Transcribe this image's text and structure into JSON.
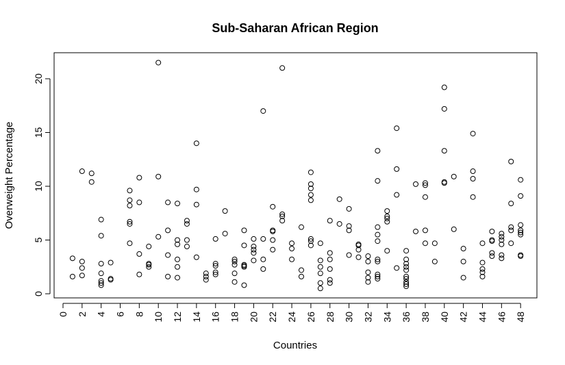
{
  "chart_data": {
    "type": "scatter",
    "title": "Sub-Saharan African Region",
    "xlabel": "Countries",
    "ylabel": "Overweight Percentage",
    "xlim": [
      0,
      48
    ],
    "ylim": [
      0,
      22
    ],
    "x_ticks": [
      0,
      2,
      4,
      6,
      8,
      10,
      12,
      14,
      16,
      18,
      20,
      22,
      24,
      26,
      28,
      30,
      32,
      34,
      36,
      38,
      40,
      42,
      44,
      46,
      48
    ],
    "y_ticks": [
      0,
      5,
      10,
      15,
      20
    ],
    "grid": false,
    "legend": "none",
    "marker": "open-circle",
    "points": [
      [
        1,
        1.6
      ],
      [
        1,
        3.3
      ],
      [
        2,
        1.7
      ],
      [
        2,
        2.4
      ],
      [
        2,
        3.0
      ],
      [
        2,
        11.4
      ],
      [
        3,
        10.4
      ],
      [
        3,
        11.2
      ],
      [
        4,
        0.8
      ],
      [
        4,
        1.0
      ],
      [
        4,
        1.2
      ],
      [
        4,
        1.9
      ],
      [
        4,
        2.8
      ],
      [
        4,
        5.4
      ],
      [
        4,
        6.9
      ],
      [
        5,
        1.3
      ],
      [
        5,
        1.4
      ],
      [
        5,
        2.9
      ],
      [
        7,
        4.7
      ],
      [
        7,
        6.5
      ],
      [
        7,
        6.7
      ],
      [
        7,
        8.2
      ],
      [
        7,
        8.7
      ],
      [
        7,
        9.6
      ],
      [
        8,
        1.8
      ],
      [
        8,
        3.7
      ],
      [
        8,
        8.5
      ],
      [
        8,
        10.8
      ],
      [
        9,
        2.5
      ],
      [
        9,
        2.7
      ],
      [
        9,
        2.8
      ],
      [
        9,
        4.4
      ],
      [
        10,
        5.3
      ],
      [
        10,
        10.9
      ],
      [
        10,
        21.5
      ],
      [
        11,
        1.6
      ],
      [
        11,
        3.6
      ],
      [
        11,
        5.9
      ],
      [
        11,
        8.5
      ],
      [
        12,
        1.5
      ],
      [
        12,
        2.5
      ],
      [
        12,
        3.2
      ],
      [
        12,
        4.6
      ],
      [
        12,
        5.0
      ],
      [
        12,
        8.4
      ],
      [
        13,
        4.4
      ],
      [
        13,
        5.0
      ],
      [
        13,
        6.5
      ],
      [
        13,
        6.8
      ],
      [
        14,
        3.4
      ],
      [
        14,
        8.3
      ],
      [
        14,
        9.7
      ],
      [
        14,
        14.0
      ],
      [
        15,
        1.3
      ],
      [
        15,
        1.6
      ],
      [
        15,
        1.9
      ],
      [
        16,
        1.8
      ],
      [
        16,
        2.0
      ],
      [
        16,
        2.6
      ],
      [
        16,
        2.8
      ],
      [
        16,
        5.1
      ],
      [
        17,
        5.6
      ],
      [
        17,
        7.7
      ],
      [
        18,
        1.1
      ],
      [
        18,
        1.9
      ],
      [
        18,
        2.7
      ],
      [
        18,
        3.0
      ],
      [
        18,
        3.2
      ],
      [
        19,
        0.8
      ],
      [
        19,
        2.5
      ],
      [
        19,
        2.6
      ],
      [
        19,
        2.7
      ],
      [
        19,
        4.5
      ],
      [
        19,
        5.9
      ],
      [
        20,
        3.1
      ],
      [
        20,
        3.8
      ],
      [
        20,
        4.1
      ],
      [
        20,
        4.4
      ],
      [
        20,
        5.1
      ],
      [
        21,
        2.3
      ],
      [
        21,
        3.2
      ],
      [
        21,
        5.1
      ],
      [
        21,
        17.0
      ],
      [
        22,
        4.1
      ],
      [
        22,
        5.0
      ],
      [
        22,
        5.8
      ],
      [
        22,
        5.9
      ],
      [
        22,
        8.1
      ],
      [
        23,
        6.8
      ],
      [
        23,
        7.2
      ],
      [
        23,
        7.4
      ],
      [
        23,
        21.0
      ],
      [
        24,
        3.2
      ],
      [
        24,
        4.2
      ],
      [
        24,
        4.7
      ],
      [
        25,
        1.6
      ],
      [
        25,
        2.2
      ],
      [
        25,
        6.2
      ],
      [
        26,
        4.5
      ],
      [
        26,
        4.9
      ],
      [
        26,
        5.1
      ],
      [
        26,
        8.7
      ],
      [
        26,
        9.2
      ],
      [
        26,
        9.8
      ],
      [
        26,
        10.2
      ],
      [
        26,
        11.3
      ],
      [
        27,
        0.5
      ],
      [
        27,
        1.0
      ],
      [
        27,
        1.9
      ],
      [
        27,
        2.5
      ],
      [
        27,
        3.1
      ],
      [
        27,
        4.7
      ],
      [
        28,
        1.0
      ],
      [
        28,
        1.3
      ],
      [
        28,
        2.3
      ],
      [
        28,
        3.2
      ],
      [
        28,
        3.8
      ],
      [
        28,
        6.8
      ],
      [
        29,
        6.5
      ],
      [
        29,
        8.8
      ],
      [
        30,
        3.6
      ],
      [
        30,
        5.9
      ],
      [
        30,
        6.3
      ],
      [
        30,
        7.9
      ],
      [
        31,
        3.4
      ],
      [
        31,
        4.1
      ],
      [
        31,
        4.5
      ],
      [
        31,
        4.6
      ],
      [
        32,
        1.1
      ],
      [
        32,
        1.5
      ],
      [
        32,
        2.0
      ],
      [
        32,
        3.0
      ],
      [
        32,
        3.5
      ],
      [
        33,
        1.4
      ],
      [
        33,
        1.6
      ],
      [
        33,
        1.8
      ],
      [
        33,
        3.0
      ],
      [
        33,
        3.2
      ],
      [
        33,
        4.9
      ],
      [
        33,
        5.5
      ],
      [
        33,
        6.2
      ],
      [
        33,
        10.5
      ],
      [
        33,
        13.3
      ],
      [
        34,
        4.0
      ],
      [
        34,
        6.7
      ],
      [
        34,
        7.0
      ],
      [
        34,
        7.2
      ],
      [
        34,
        7.7
      ],
      [
        35,
        2.4
      ],
      [
        35,
        9.2
      ],
      [
        35,
        11.6
      ],
      [
        35,
        15.4
      ],
      [
        36,
        0.7
      ],
      [
        36,
        0.9
      ],
      [
        36,
        1.1
      ],
      [
        36,
        1.4
      ],
      [
        36,
        1.6
      ],
      [
        36,
        2.2
      ],
      [
        36,
        2.5
      ],
      [
        36,
        2.8
      ],
      [
        36,
        3.2
      ],
      [
        36,
        4.0
      ],
      [
        37,
        5.8
      ],
      [
        37,
        10.2
      ],
      [
        38,
        4.7
      ],
      [
        38,
        5.9
      ],
      [
        38,
        9.0
      ],
      [
        38,
        10.1
      ],
      [
        38,
        10.3
      ],
      [
        39,
        3.0
      ],
      [
        39,
        4.7
      ],
      [
        40,
        10.3
      ],
      [
        40,
        10.4
      ],
      [
        40,
        13.3
      ],
      [
        40,
        17.2
      ],
      [
        40,
        19.2
      ],
      [
        41,
        6.0
      ],
      [
        41,
        10.9
      ],
      [
        42,
        1.5
      ],
      [
        42,
        3.0
      ],
      [
        42,
        4.2
      ],
      [
        43,
        9.0
      ],
      [
        43,
        10.7
      ],
      [
        43,
        11.4
      ],
      [
        43,
        14.9
      ],
      [
        44,
        1.6
      ],
      [
        44,
        2.0
      ],
      [
        44,
        2.3
      ],
      [
        44,
        2.9
      ],
      [
        44,
        4.7
      ],
      [
        45,
        3.5
      ],
      [
        45,
        3.8
      ],
      [
        45,
        4.9
      ],
      [
        45,
        5.0
      ],
      [
        45,
        5.8
      ],
      [
        46,
        3.3
      ],
      [
        46,
        3.6
      ],
      [
        46,
        4.6
      ],
      [
        46,
        5.0
      ],
      [
        46,
        5.3
      ],
      [
        46,
        5.6
      ],
      [
        47,
        4.7
      ],
      [
        47,
        5.9
      ],
      [
        47,
        6.2
      ],
      [
        47,
        8.4
      ],
      [
        47,
        12.3
      ],
      [
        48,
        3.5
      ],
      [
        48,
        3.6
      ],
      [
        48,
        5.5
      ],
      [
        48,
        5.7
      ],
      [
        48,
        5.9
      ],
      [
        48,
        6.4
      ],
      [
        48,
        9.1
      ],
      [
        48,
        10.6
      ]
    ]
  }
}
